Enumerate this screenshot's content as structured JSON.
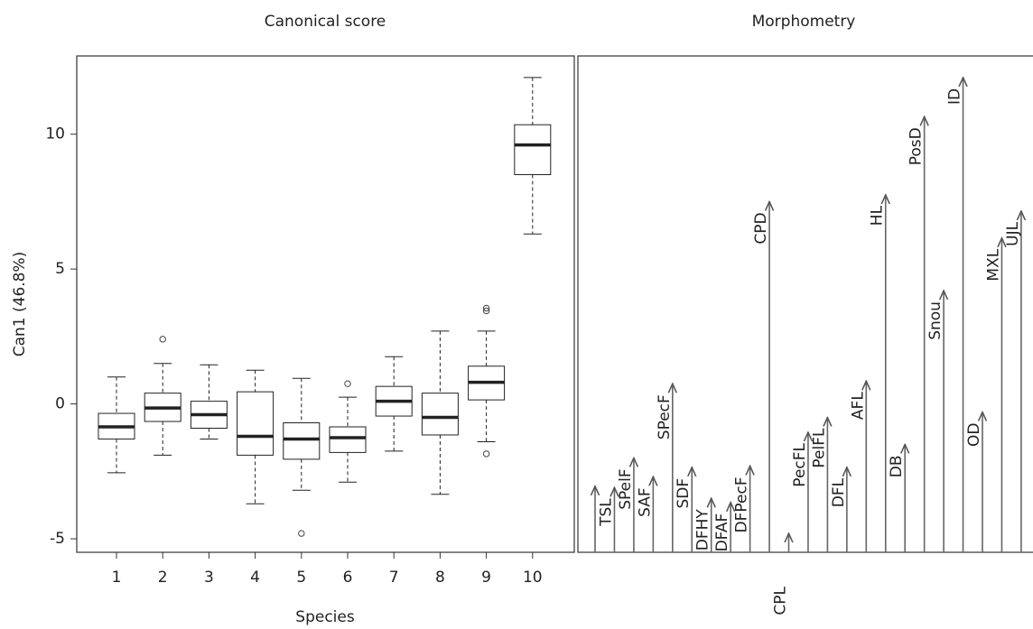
{
  "chart_data": [
    {
      "type": "box",
      "title": "Canonical score",
      "xlabel": "Species",
      "ylabel": "Can1 (46.8%)",
      "categories": [
        "1",
        "2",
        "3",
        "4",
        "5",
        "6",
        "7",
        "8",
        "9",
        "10"
      ],
      "boxes": [
        {
          "min": -2.55,
          "q1": -1.3,
          "median": -0.85,
          "q3": -0.35,
          "max": 1.0
        },
        {
          "min": -1.9,
          "q1": -0.65,
          "median": -0.15,
          "q3": 0.4,
          "max": 1.5,
          "outliers": [
            2.4
          ]
        },
        {
          "min": -1.3,
          "q1": -0.9,
          "median": -0.4,
          "q3": 0.1,
          "max": 1.45
        },
        {
          "min": -3.7,
          "q1": -1.9,
          "median": -1.2,
          "q3": 0.45,
          "max": 1.25
        },
        {
          "min": -3.2,
          "q1": -2.05,
          "median": -1.3,
          "q3": -0.7,
          "max": 0.95,
          "outliers": [
            -4.8
          ]
        },
        {
          "min": -2.9,
          "q1": -1.8,
          "median": -1.25,
          "q3": -0.85,
          "max": 0.25,
          "outliers": [
            0.75
          ]
        },
        {
          "min": -1.75,
          "q1": -0.45,
          "median": 0.1,
          "q3": 0.65,
          "max": 1.75
        },
        {
          "min": -3.35,
          "q1": -1.15,
          "median": -0.5,
          "q3": 0.4,
          "max": 2.7
        },
        {
          "min": -1.4,
          "q1": 0.15,
          "median": 0.8,
          "q3": 1.4,
          "max": 2.7,
          "outliers": [
            3.55,
            3.45,
            -1.85
          ]
        },
        {
          "min": 6.3,
          "q1": 8.5,
          "median": 9.6,
          "q3": 10.35,
          "max": 12.1
        }
      ],
      "ylim": [
        -5.5,
        12.9
      ],
      "yticks": [
        -5,
        0,
        5,
        10
      ],
      "color": "#222222"
    },
    {
      "type": "arrow",
      "title": "Morphometry",
      "categories": [
        null,
        "TSL",
        "SPelF",
        "SAF",
        "SPecF",
        "SDF",
        "DFHY",
        "DFAF",
        "DFPecF",
        "CPD",
        "CPL",
        "PecFL",
        "PelFL",
        "DFL",
        "AFL",
        "HL",
        "DB",
        "PosD",
        "Snou",
        "ID",
        "OD",
        "MXL",
        "UJL"
      ],
      "values": [
        -3.05,
        -3.1,
        -2.0,
        -2.7,
        0.75,
        -2.35,
        -3.5,
        -3.65,
        -2.3,
        7.5,
        -4.8,
        -1.05,
        -0.5,
        -2.35,
        0.85,
        7.75,
        -1.5,
        10.65,
        4.2,
        12.1,
        -0.3,
        6.15,
        7.15
      ],
      "ylim": [
        -5.5,
        12.9
      ],
      "color": "#666666"
    }
  ]
}
